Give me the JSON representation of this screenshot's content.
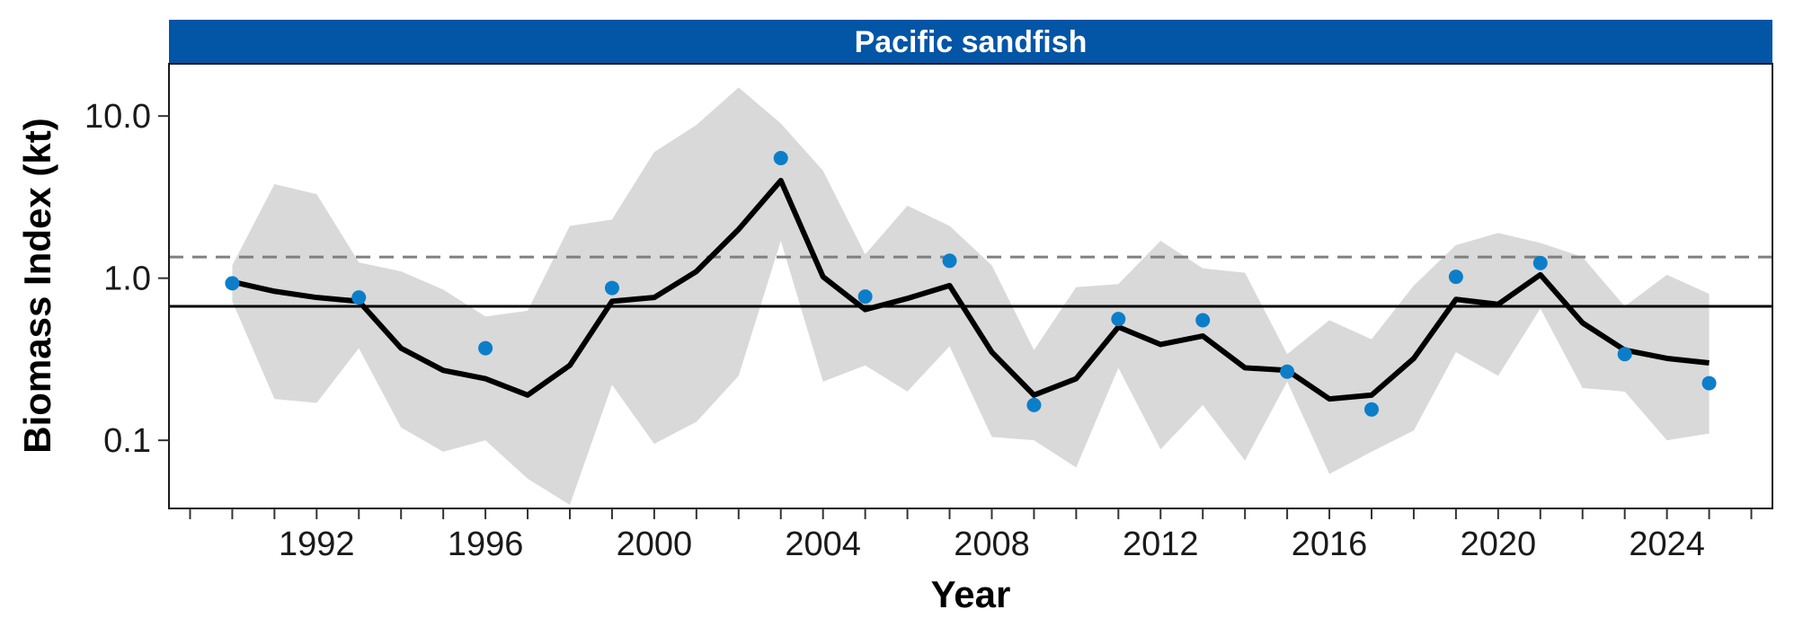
{
  "chart_data": {
    "type": "line",
    "title": "Pacific sandfish",
    "xlabel": "Year",
    "ylabel": "Biomass Index (kt)",
    "yscale": "log",
    "xlim": [
      1988.5,
      2026.5
    ],
    "ylim": [
      0.038,
      21
    ],
    "xticks": [
      1992,
      1996,
      2000,
      2004,
      2008,
      2012,
      2016,
      2020,
      2024
    ],
    "yticks": [
      0.1,
      1.0,
      10.0
    ],
    "ytick_labels": [
      "0.1",
      "1.0",
      "10.0"
    ],
    "reference_lines": [
      {
        "style": "solid",
        "y": 0.67
      },
      {
        "style": "dashed",
        "y": 1.35
      }
    ],
    "ribbon": {
      "x": [
        1990,
        1991,
        1992,
        1993,
        1994,
        1995,
        1996,
        1997,
        1998,
        1999,
        2000,
        2001,
        2002,
        2003,
        2004,
        2005,
        2006,
        2007,
        2008,
        2009,
        2010,
        2011,
        2012,
        2013,
        2014,
        2015,
        2016,
        2017,
        2018,
        2019,
        2020,
        2021,
        2022,
        2023,
        2024,
        2025
      ],
      "lower": [
        0.72,
        0.18,
        0.17,
        0.37,
        0.12,
        0.085,
        0.1,
        0.058,
        0.04,
        0.22,
        0.095,
        0.13,
        0.25,
        1.7,
        0.23,
        0.29,
        0.2,
        0.38,
        0.105,
        0.1,
        0.068,
        0.28,
        0.088,
        0.165,
        0.075,
        0.23,
        0.062,
        0.085,
        0.115,
        0.35,
        0.25,
        0.65,
        0.21,
        0.2,
        0.1,
        0.11
      ],
      "upper": [
        1.2,
        3.8,
        3.3,
        1.25,
        1.1,
        0.85,
        0.58,
        0.63,
        2.1,
        2.3,
        6.0,
        8.8,
        15.0,
        9.0,
        4.6,
        1.4,
        2.8,
        2.1,
        1.2,
        0.36,
        0.88,
        0.92,
        1.7,
        1.15,
        1.08,
        0.34,
        0.55,
        0.42,
        0.9,
        1.6,
        1.9,
        1.65,
        1.35,
        0.67,
        1.05,
        0.8
      ]
    },
    "series": [
      {
        "type": "line",
        "x": [
          1990,
          1991,
          1992,
          1993,
          1994,
          1995,
          1996,
          1997,
          1998,
          1999,
          2000,
          2001,
          2002,
          2003,
          2004,
          2005,
          2006,
          2007,
          2008,
          2009,
          2010,
          2011,
          2012,
          2013,
          2014,
          2015,
          2016,
          2017,
          2018,
          2019,
          2020,
          2021,
          2022,
          2023,
          2024,
          2025
        ],
        "y": [
          0.95,
          0.83,
          0.76,
          0.72,
          0.37,
          0.27,
          0.24,
          0.19,
          0.29,
          0.72,
          0.76,
          1.1,
          2.0,
          4.0,
          1.02,
          0.64,
          0.75,
          0.9,
          0.35,
          0.19,
          0.24,
          0.5,
          0.39,
          0.44,
          0.28,
          0.27,
          0.18,
          0.19,
          0.32,
          0.74,
          0.69,
          1.05,
          0.53,
          0.36,
          0.32,
          0.3
        ]
      },
      {
        "type": "scatter",
        "x": [
          1990,
          1993,
          1996,
          1999,
          2003,
          2005,
          2007,
          2009,
          2011,
          2013,
          2015,
          2017,
          2019,
          2021,
          2023,
          2025
        ],
        "y": [
          0.93,
          0.76,
          0.37,
          0.87,
          5.5,
          0.77,
          1.28,
          0.165,
          0.56,
          0.55,
          0.265,
          0.155,
          1.02,
          1.24,
          0.34,
          0.225
        ]
      }
    ],
    "colors": {
      "strip": "#0355a6",
      "ribbon": "#d9d9d9",
      "line": "#000000",
      "points": "#0c7ec9",
      "dashed": "#808080"
    }
  }
}
